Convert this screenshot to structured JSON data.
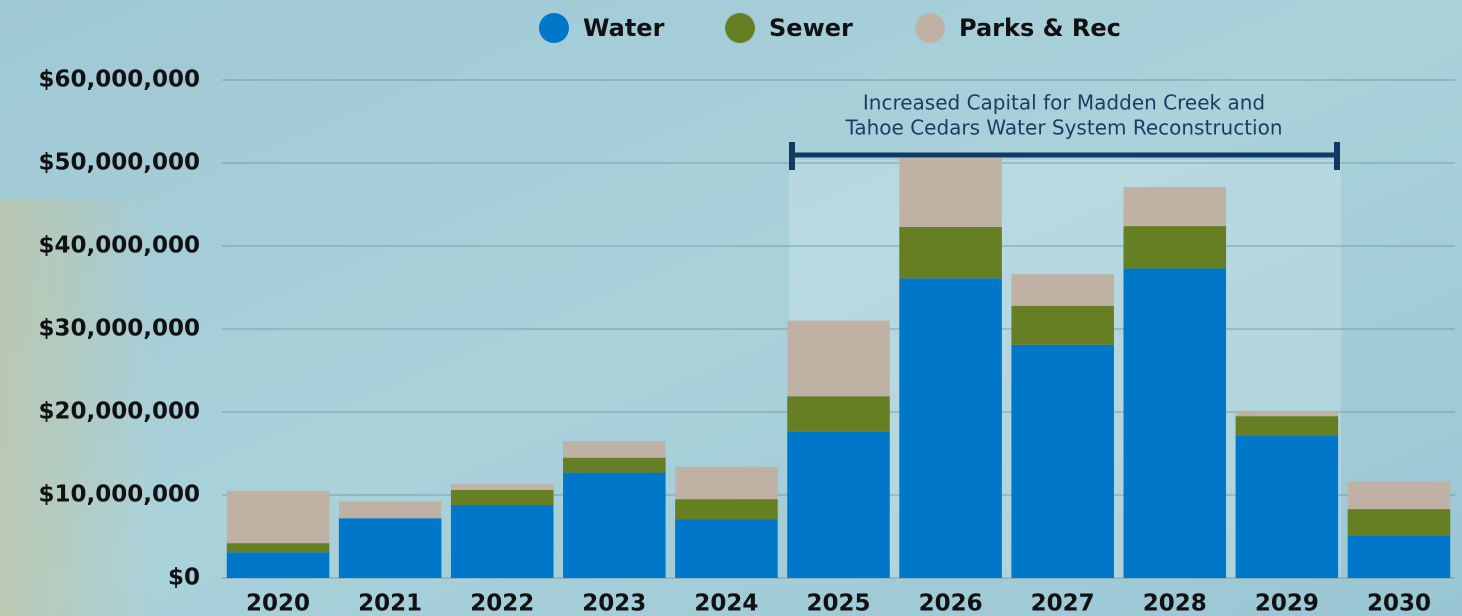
{
  "chart_data": {
    "type": "stacked_bar",
    "categories": [
      "2020",
      "2021",
      "2022",
      "2023",
      "2024",
      "2025",
      "2026",
      "2027",
      "2028",
      "2029",
      "2030"
    ],
    "series": [
      {
        "name": "Water",
        "color": "#0077c8",
        "values": [
          3100000,
          7200000,
          8800000,
          12700000,
          7100000,
          17600000,
          36100000,
          28100000,
          37300000,
          17200000,
          5100000
        ]
      },
      {
        "name": "Sewer",
        "color": "#667f22",
        "values": [
          1100000,
          0,
          1800000,
          1800000,
          2400000,
          4300000,
          6200000,
          4700000,
          5100000,
          2300000,
          3200000
        ]
      },
      {
        "name": "Parks & Rec",
        "color": "#bfb2a5",
        "values": [
          6300000,
          2000000,
          700000,
          2000000,
          3900000,
          9100000,
          8300000,
          3800000,
          4700000,
          500000,
          3300000
        ]
      }
    ],
    "ylim": [
      0,
      60000000
    ],
    "yticks": [
      {
        "value": 0,
        "label": "$0"
      },
      {
        "value": 10000000,
        "label": "$10,000,000"
      },
      {
        "value": 20000000,
        "label": "$20,000,000"
      },
      {
        "value": 30000000,
        "label": "$30,000,000"
      },
      {
        "value": 40000000,
        "label": "$40,000,000"
      },
      {
        "value": 50000000,
        "label": "$50,000,000"
      },
      {
        "value": 60000000,
        "label": "$60,000,000"
      }
    ],
    "grid": true,
    "legend": "top",
    "annotation": [
      "Increased Capital for Madden Creek and",
      "Tahoe Cedars Water System Reconstruction"
    ]
  }
}
